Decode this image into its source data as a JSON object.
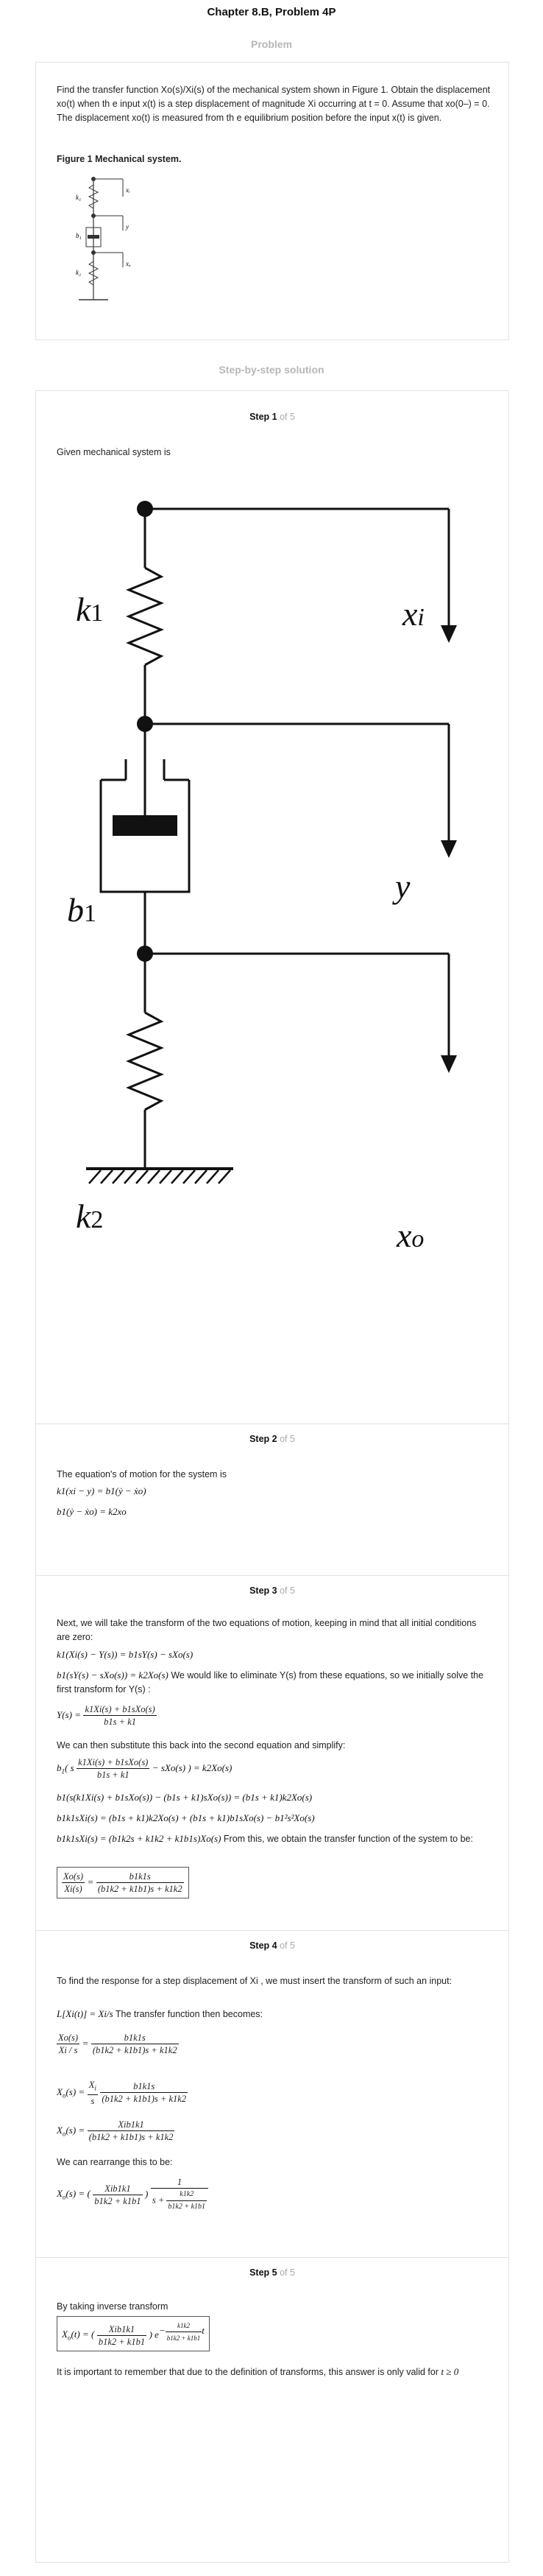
{
  "title": "Chapter 8.B, Problem 4P",
  "problem_heading": "Problem",
  "problem_text": "Find the transfer function Xo(s)/Xi(s) of the mechanical system shown in Figure 1. Obtain the displacement xo(t) when th e input x(t) is a step displacement of magnitude Xi occurring at t = 0. Assume that xo(0–) = 0. The displacement xo(t) is measured from th e equilibrium position before the input x(t) is given.",
  "figure_caption": "Figure 1 Mechanical system.",
  "solution_heading": "Step-by-step solution",
  "step_total": "of 5",
  "labels": {
    "k1": "k",
    "k1s": "1",
    "b1": "b",
    "b1s": "1",
    "k2": "k",
    "k2s": "2",
    "xi": "x",
    "xis": "i",
    "y": "y",
    "xo": "x",
    "xos": "o"
  },
  "step1": {
    "label": "Step 1",
    "text": "Given mechanical system is"
  },
  "step2": {
    "label": "Step 2",
    "text": "The equation's of motion for the system is",
    "eq1": "k1(xi − y) = b1(ẏ − ẋo)",
    "eq2": "b1(ẏ − ẋo) = k2xo"
  },
  "step3": {
    "label": "Step 3",
    "text1": "Next, we will take the transform of the two equations of motion, keeping in mind that all initial conditions are zero:",
    "eq1": "k1(Xi(s) − Y(s)) = b1sY(s) − sXo(s)",
    "eq2": "b1(sY(s) − sXo(s)) = k2Xo(s)",
    "text2": " We would like to eliminate  Y(s)  from these equations, so we initially solve the first transform for  Y(s) :",
    "eq3_lhs": "Y(s) =",
    "eq3_num": "k1Xi(s) + b1sXo(s)",
    "eq3_den": "b1s + k1",
    "text3": "We can then substitute this back into the second equation and simplify:",
    "eq4_num": "k1Xi(s) + b1sXo(s)",
    "eq4_den": "b1s + k1",
    "eq4_rhs": "− sXo(s) ) = k2Xo(s)",
    "eq5": "b1(s(k1Xi(s) + b1sXo(s)) − (b1s + k1)sXo(s)) = (b1s + k1)k2Xo(s)",
    "eq6": "b1k1sXi(s) = (b1s + k1)k2Xo(s) + (b1s + k1)b1sXo(s) − b1²s²Xo(s)",
    "eq7": "b1k1sXi(s) = (b1k2s + k1k2 + k1b1s)Xo(s)",
    "text4": " From this, we obtain the transfer function of the system to be:",
    "tf_lhs_num": "Xo(s)",
    "tf_lhs_den": "Xi(s)",
    "tf_num": "b1k1s",
    "tf_den": "(b1k2 + k1b1)s + k1k2"
  },
  "step4": {
    "label": "Step 4",
    "text1": "To find the response for a step displacement of  Xi , we must insert the transform of such an input:",
    "eq1": "L[Xi(t)] = Xi/s",
    "text2": " The transfer function then becomes:",
    "eqA_lhs_num": "Xo(s)",
    "eqA_lhs_den": "Xi / s",
    "eqA_num": "b1k1s",
    "eqA_den": "(b1k2 + k1b1)s + k1k2",
    "eqB_num": "b1k1s",
    "eqB_den": "(b1k2 + k1b1)s + k1k2",
    "eqC_num": "Xib1k1",
    "eqC_den": "(b1k2 + k1b1)s + k1k2",
    "text3": "We can rearrange this to be:",
    "eqD_num": "Xib1k1",
    "eqD_den": "b1k2 + k1b1",
    "eqD_tail_num": "k1k2",
    "eqD_tail_den": "b1k2 + k1b1"
  },
  "step5": {
    "label": "Step 5",
    "text1": "By taking inverse transform",
    "eq_num": "Xib1k1",
    "eq_den": "b1k2 + k1b1",
    "exp_num": "k1k2",
    "exp_den": "b1k2 + k1b1",
    "text2": "It is important to remember that due to the definition of transforms, this answer is only valid for",
    "cond": "t ≥ 0"
  }
}
